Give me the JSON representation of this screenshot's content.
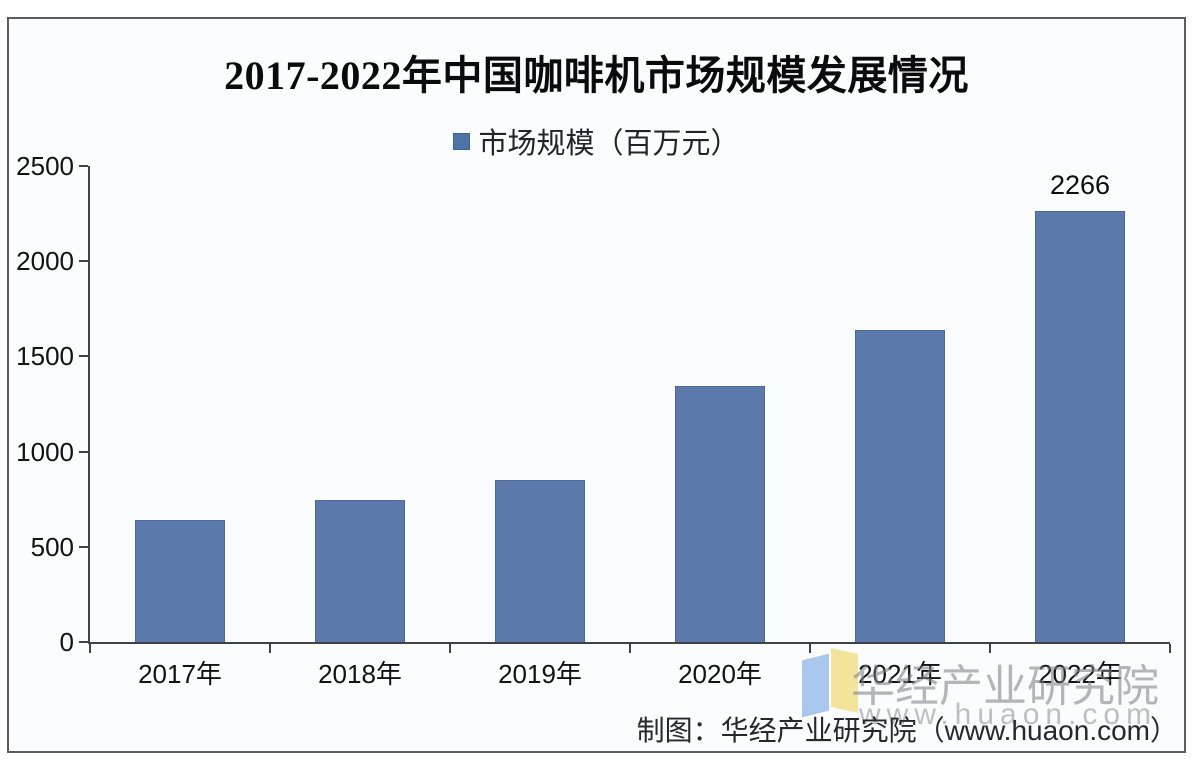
{
  "title": "2017-2022年中国咖啡机市场规模发展情况",
  "legend": {
    "label": "市场规模（百万元）",
    "marker_color": "#4e73a7",
    "marker_border_color": "#3e5f92"
  },
  "chart_data": {
    "type": "bar",
    "categories": [
      "2017年",
      "2018年",
      "2019年",
      "2020年",
      "2021年",
      "2022年"
    ],
    "values": [
      640,
      747,
      851,
      1346,
      1640,
      2266
    ],
    "title": "2017-2022年中国咖啡机市场规模发展情况",
    "xlabel": "",
    "ylabel": "",
    "ylim": [
      0,
      2500
    ],
    "yticks": [
      0,
      500,
      1000,
      1500,
      2000,
      2500
    ],
    "grid": "off",
    "legend_position": "top-center",
    "series_name": "市场规模（百万元）",
    "bar_color": "#5b7aab",
    "bar_border_color": "#49699a",
    "value_label": "2266",
    "value_label_index": 5
  },
  "watermark": {
    "brand": "华经产业研究院",
    "url": "www.huaon.com",
    "logo_colors": {
      "left": "#a9c6ee",
      "right": "#f4e49b"
    }
  },
  "footer": {
    "credit": "制图：华经产业研究院（www.huaon.com）"
  }
}
